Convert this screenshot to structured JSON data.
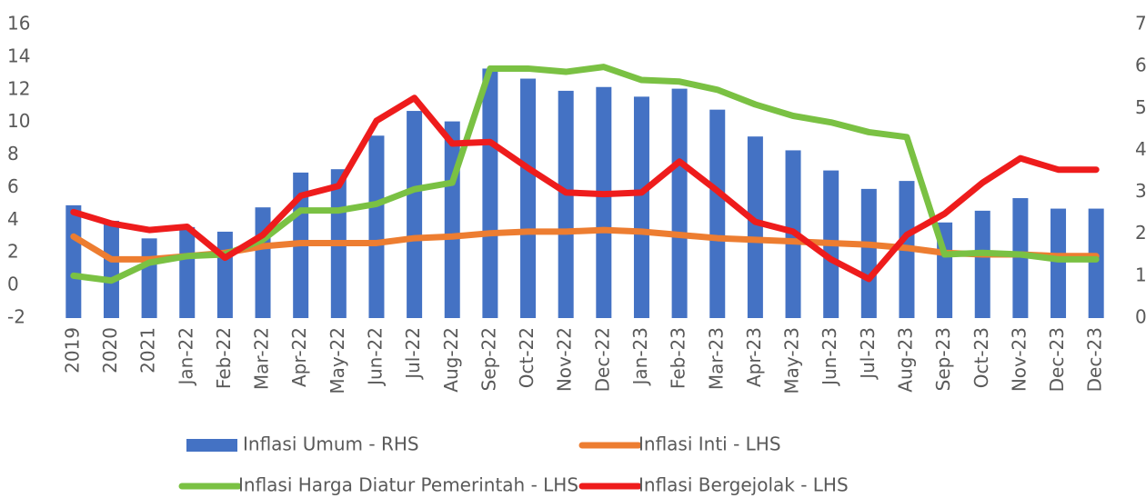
{
  "chart_data": {
    "type": "bar-line",
    "categories": [
      "2019",
      "2020",
      "2021",
      "Jan-22",
      "Feb-22",
      "Mar-22",
      "Apr-22",
      "May-22",
      "Jun-22",
      "Jul-22",
      "Aug-22",
      "Sep-22",
      "Oct-22",
      "Nov-22",
      "Dec-22",
      "Jan-23",
      "Feb-23",
      "Mar-23",
      "Apr-23",
      "May-23",
      "Jun-23",
      "Jul-23",
      "Aug-23",
      "Sep-23",
      "Oct-23",
      "Nov-23",
      "Dec-23",
      "Dec-23"
    ],
    "ylim": [
      -2,
      16
    ],
    "yticks": [
      -2,
      0,
      2,
      4,
      6,
      8,
      10,
      12,
      14,
      16
    ],
    "y2lim": [
      0,
      7
    ],
    "y2ticks": [
      0,
      1,
      2,
      3,
      4,
      5,
      6,
      7
    ],
    "series": [
      {
        "name": "Inflasi Umum - RHS",
        "color": "#4472c4",
        "type": "bar",
        "axis": "y2",
        "values": [
          2.69,
          2.32,
          1.9,
          2.17,
          2.06,
          2.64,
          3.47,
          3.55,
          4.35,
          4.94,
          4.69,
          5.95,
          5.71,
          5.42,
          5.51,
          5.28,
          5.47,
          4.97,
          4.33,
          4.0,
          3.52,
          3.08,
          3.27,
          2.28,
          2.56,
          2.86,
          2.61,
          2.61
        ]
      },
      {
        "name": "Inflasi Inti - LHS",
        "color": "#ed7d31",
        "type": "line",
        "values": [
          3.0,
          1.6,
          1.6,
          1.8,
          2.0,
          2.4,
          2.6,
          2.6,
          2.6,
          2.9,
          3.0,
          3.2,
          3.3,
          3.3,
          3.4,
          3.3,
          3.1,
          2.9,
          2.8,
          2.7,
          2.6,
          2.5,
          2.3,
          2.0,
          1.9,
          1.9,
          1.8,
          1.8
        ]
      },
      {
        "name": "Inflasi Harga Diatur Pemerintah - LHS",
        "color": "#7ac143",
        "type": "line",
        "values": [
          0.6,
          0.3,
          1.4,
          1.8,
          1.9,
          2.8,
          4.6,
          4.6,
          5.0,
          5.9,
          6.3,
          13.3,
          13.3,
          13.1,
          13.4,
          12.6,
          12.5,
          12.0,
          11.1,
          10.4,
          10.0,
          9.4,
          9.1,
          1.9,
          2.0,
          1.9,
          1.6,
          1.6
        ]
      },
      {
        "name": "Inflasi Bergejolak - LHS",
        "color": "#ee1c1c",
        "type": "line",
        "values": [
          4.5,
          3.8,
          3.4,
          3.6,
          1.7,
          3.1,
          5.5,
          6.1,
          10.1,
          11.5,
          8.7,
          8.8,
          7.2,
          5.7,
          5.6,
          5.7,
          7.6,
          5.8,
          3.9,
          3.3,
          1.6,
          0.4,
          3.1,
          4.4,
          6.3,
          7.8,
          7.1,
          7.1
        ]
      }
    ]
  }
}
